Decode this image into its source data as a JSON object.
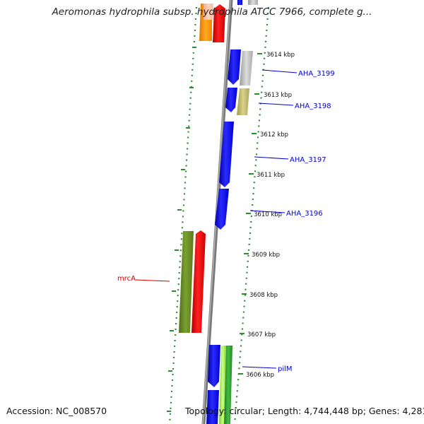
{
  "title": "Aeromonas hydrophila subsp. hydrophila ATCC 7966, complete g...",
  "footer": {
    "accession": "Accession: NC_008570",
    "topology": "Topology: circular; Length: 4,744,448 bp; Genes: 4,281"
  },
  "ticks": [
    "3614 kbp",
    "3613 kbp",
    "3612 kbp",
    "3611 kbp",
    "3610 kbp",
    "3609 kbp",
    "3608 kbp",
    "3607 kbp",
    "3606 kbp"
  ],
  "genes": [
    {
      "label": "AHA_3199",
      "color": "#0000cc"
    },
    {
      "label": "AHA_3198",
      "color": "#0000cc"
    },
    {
      "label": "AHA_3197",
      "color": "#0000cc"
    },
    {
      "label": "AHA_3196",
      "color": "#0000cc"
    },
    {
      "label": "mrcA",
      "color": "#cc0000"
    },
    {
      "label": "pilM",
      "color": "#0000cc"
    }
  ],
  "colors": {
    "backbone": "#7a7a7a",
    "dotted_ring": "#2e8b2e",
    "cds_blue": "#0000ff",
    "cds_red": "#ff0000",
    "cds_olive": "#6b8e23",
    "cds_orange": "#ff9900",
    "cds_grey": "#b0b0b0",
    "cds_khaki": "#bdb76b",
    "cds_lightgreen": "#99ee44",
    "cds_green": "#2e9e2e"
  }
}
